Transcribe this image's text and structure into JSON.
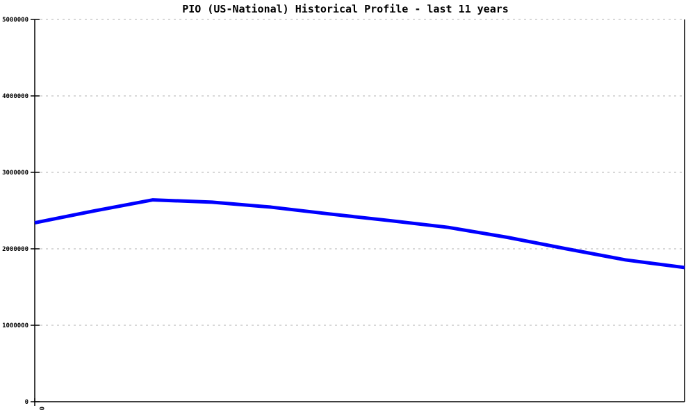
{
  "chart_data": {
    "type": "line",
    "title": "PIO (US-National) Historical Profile - last 11 years",
    "series_name": "PIO (US-National)",
    "x": [
      0,
      1,
      2,
      3,
      4,
      5,
      6,
      7,
      8,
      9,
      10,
      11
    ],
    "values": [
      2340000,
      2495000,
      2640000,
      2610000,
      2545000,
      2455000,
      2370000,
      2280000,
      2150000,
      2000000,
      1855000,
      1755000
    ],
    "xlabel": "",
    "ylabel": "",
    "ylim": [
      0,
      5000000
    ],
    "yticks": [
      0,
      1000000,
      2000000,
      3000000,
      4000000,
      5000000
    ],
    "ytick_labels": [
      "0",
      "1000000",
      "2000000",
      "3000000",
      "4000000",
      "5000000"
    ],
    "xtick_labels": [
      "0"
    ],
    "x_origin_label": "0",
    "grid": "horizontal dotted",
    "legend_position": "none",
    "line_color": "#0000ff",
    "grid_color": "#b0b0b0",
    "axis_color": "#000000"
  }
}
